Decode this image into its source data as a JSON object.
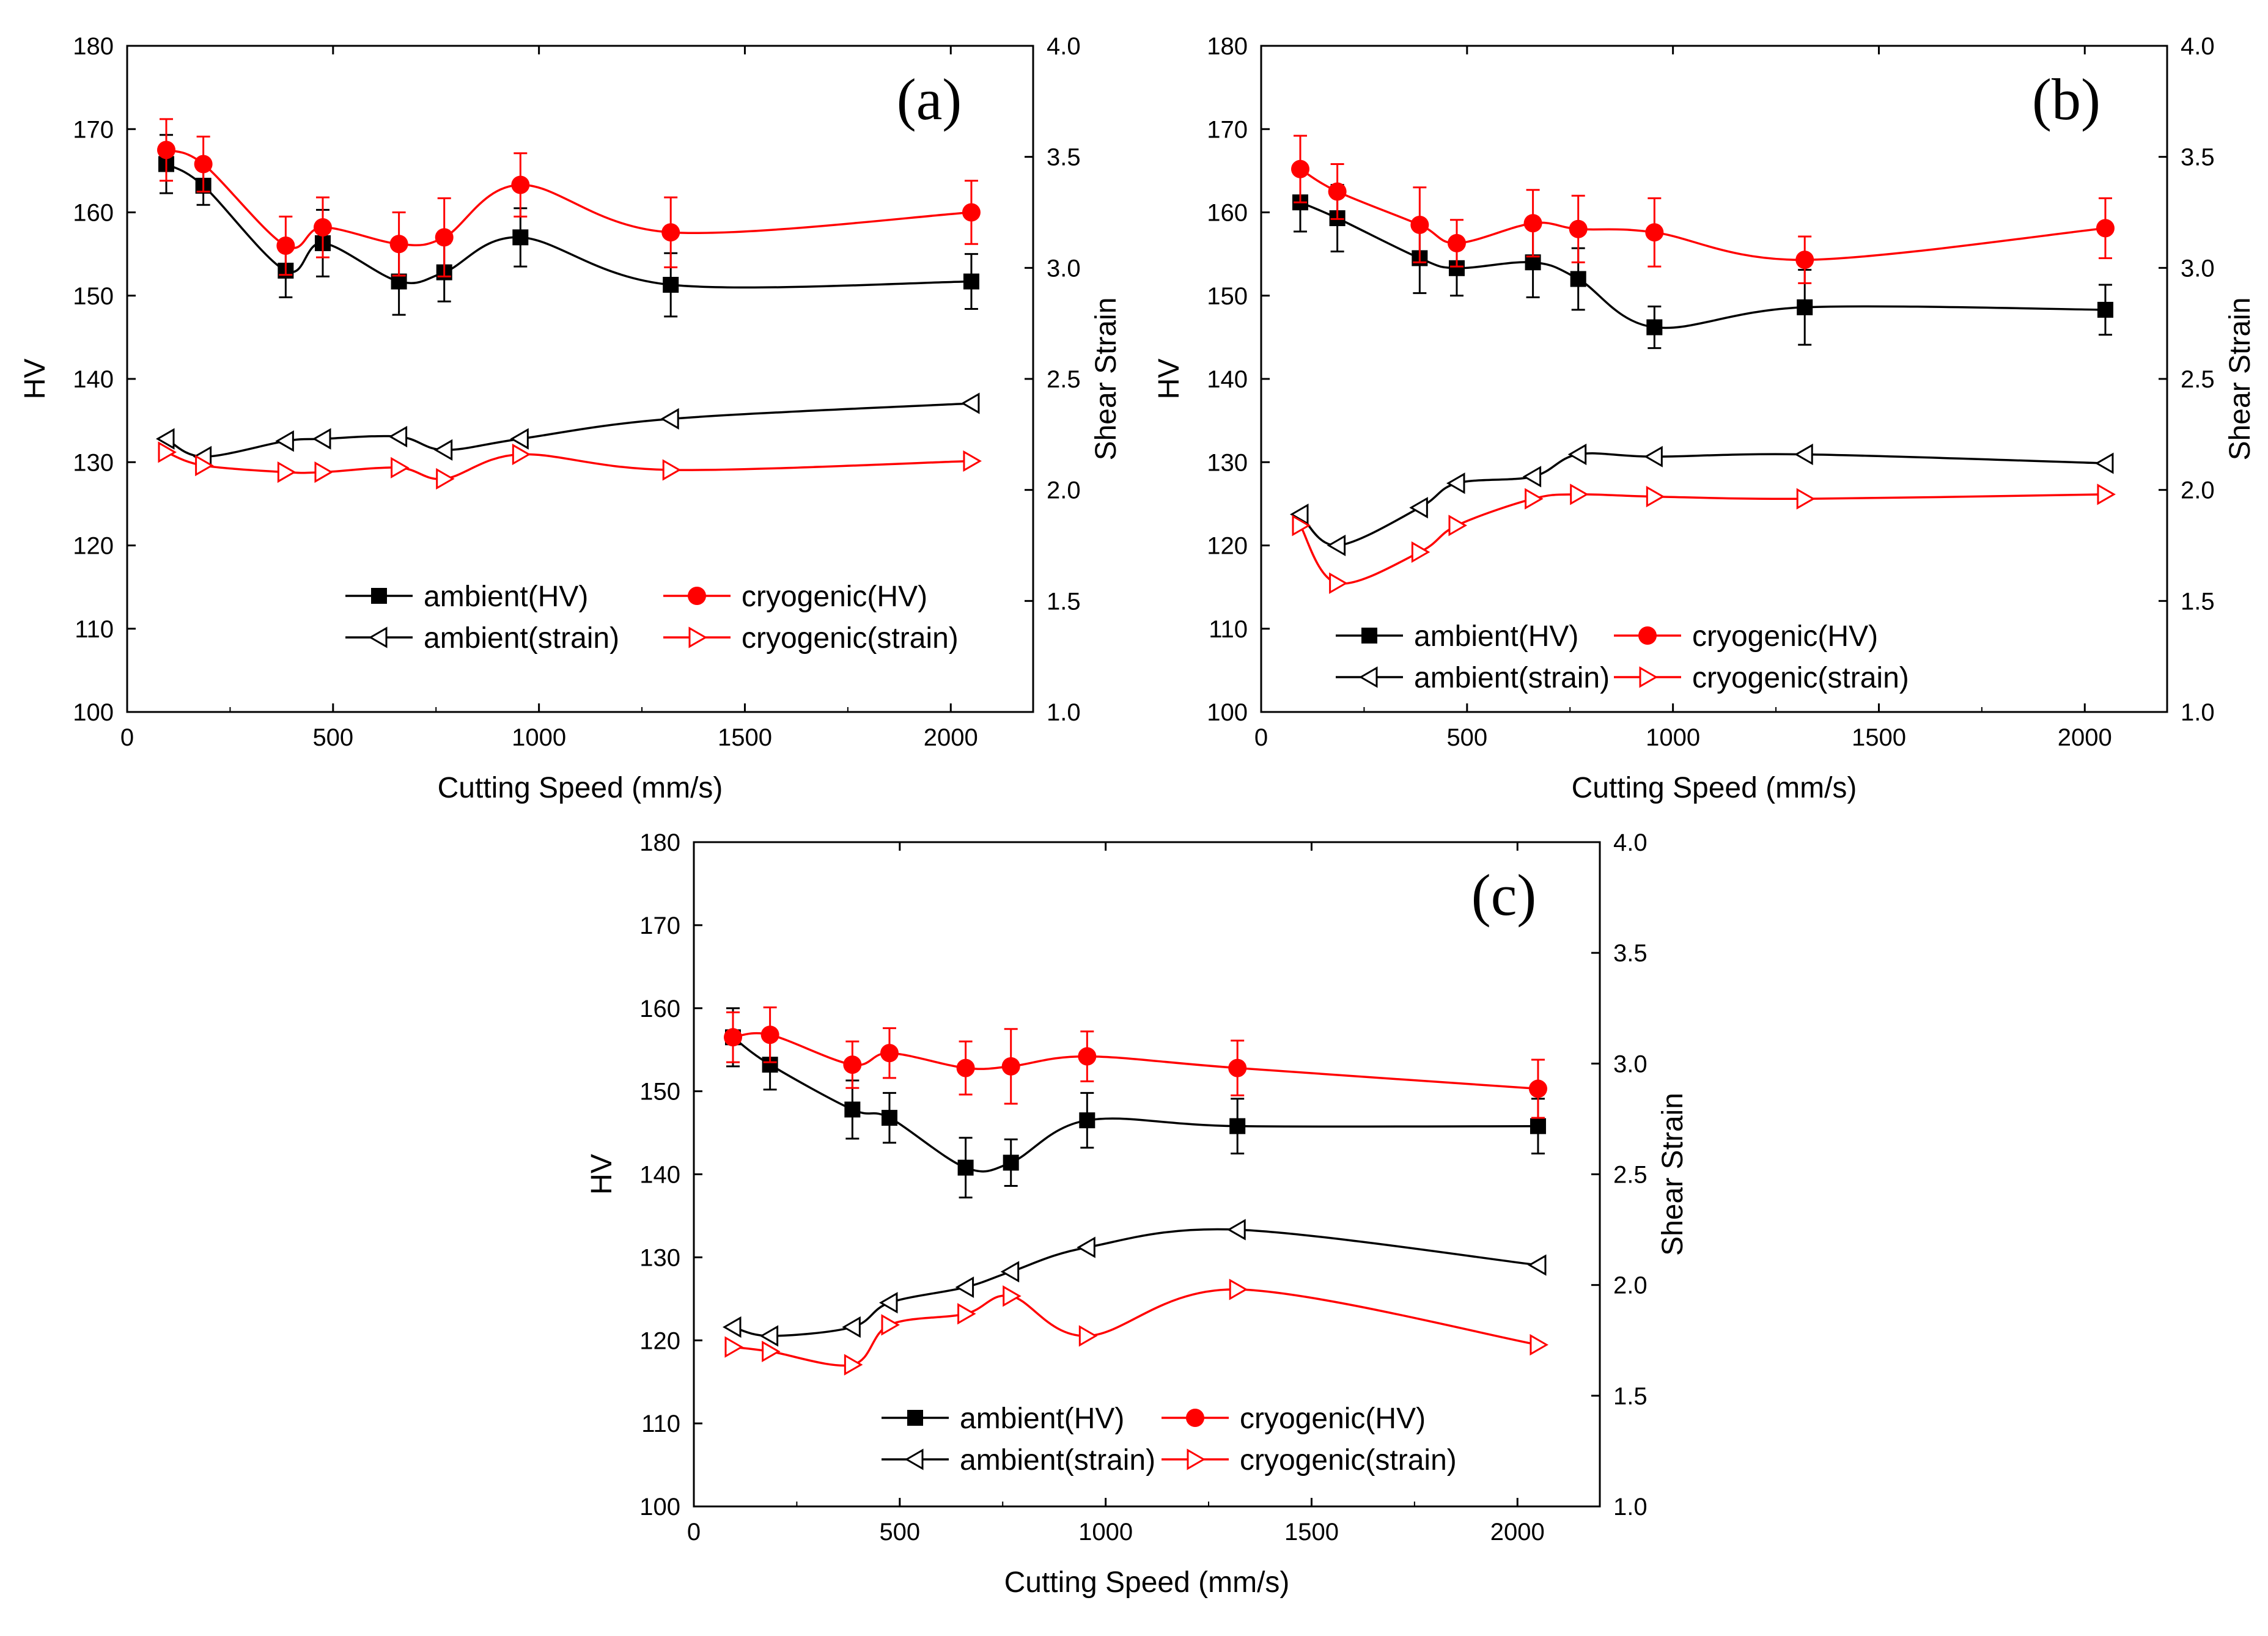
{
  "figure": {
    "description_free": true
  },
  "chart_data": [
    {
      "type": "line",
      "panel": "(a)",
      "xlabel": "Cutting Speed (mm/s)",
      "ylabel": "HV",
      "y2label": "Shear Strain",
      "xlim": [
        0,
        2200
      ],
      "ylim": [
        100,
        180
      ],
      "y2lim": [
        1.0,
        4.0
      ],
      "xticks": [
        "0",
        "500",
        "1000",
        "1500",
        "2000"
      ],
      "yticks": [
        "100",
        "110",
        "120",
        "130",
        "140",
        "150",
        "160",
        "170",
        "180"
      ],
      "y2ticks": [
        "1.0",
        "1.5",
        "2.0",
        "2.5",
        "3.0",
        "3.5",
        "4.0"
      ],
      "x": [
        95,
        185,
        385,
        475,
        660,
        770,
        955,
        1320,
        2050
      ],
      "series": [
        {
          "name": "ambient(HV)",
          "axis": "left",
          "color": "#000000",
          "marker": "square",
          "values": [
            165.8,
            163.2,
            153.0,
            156.3,
            151.7,
            152.8,
            157.0,
            151.3,
            151.7
          ],
          "errors": [
            3.5,
            2.3,
            3.2,
            4.0,
            4.0,
            3.5,
            3.5,
            3.8,
            3.3
          ]
        },
        {
          "name": "cryogenic(HV)",
          "axis": "left",
          "color": "#ff0000",
          "marker": "circle",
          "values": [
            167.5,
            165.8,
            156.0,
            158.2,
            156.2,
            157.0,
            163.3,
            157.6,
            160.0
          ],
          "errors": [
            3.7,
            3.3,
            3.5,
            3.6,
            3.8,
            4.7,
            3.8,
            4.2,
            3.8
          ]
        },
        {
          "name": "ambient(strain)",
          "axis": "right",
          "color": "#000000",
          "marker": "triangle-left",
          "values": [
            2.23,
            2.15,
            2.22,
            2.23,
            2.24,
            2.18,
            2.23,
            2.32,
            2.39
          ]
        },
        {
          "name": "cryogenic(strain)",
          "axis": "right",
          "color": "#ff0000",
          "marker": "triangle-right",
          "values": [
            2.17,
            2.11,
            2.08,
            2.08,
            2.1,
            2.05,
            2.16,
            2.09,
            2.13
          ]
        }
      ],
      "legend": [
        "ambient(HV)",
        "cryogenic(HV)",
        "ambient(strain)",
        "cryogenic(strain)"
      ]
    },
    {
      "type": "line",
      "panel": "(b)",
      "xlabel": "Cutting Speed (mm/s)",
      "ylabel": "HV",
      "y2label": "Shear Strain",
      "xlim": [
        0,
        2200
      ],
      "ylim": [
        100,
        180
      ],
      "y2lim": [
        1.0,
        4.0
      ],
      "xticks": [
        "0",
        "500",
        "1000",
        "1500",
        "2000"
      ],
      "yticks": [
        "100",
        "110",
        "120",
        "130",
        "140",
        "150",
        "160",
        "170",
        "180"
      ],
      "y2ticks": [
        "1.0",
        "1.5",
        "2.0",
        "2.5",
        "3.0",
        "3.5",
        "4.0"
      ],
      "x": [
        95,
        185,
        385,
        475,
        660,
        770,
        955,
        1320,
        2050
      ],
      "series": [
        {
          "name": "ambient(HV)",
          "axis": "left",
          "color": "#000000",
          "marker": "square",
          "values": [
            161.2,
            159.3,
            154.5,
            153.3,
            154.0,
            152.0,
            146.2,
            148.6,
            148.3
          ],
          "errors": [
            3.5,
            4.0,
            4.2,
            3.3,
            4.2,
            3.7,
            2.5,
            4.5,
            3.0
          ]
        },
        {
          "name": "cryogenic(HV)",
          "axis": "left",
          "color": "#ff0000",
          "marker": "circle",
          "values": [
            165.2,
            162.5,
            158.5,
            156.3,
            158.7,
            158.0,
            157.6,
            154.3,
            158.1
          ],
          "errors": [
            4.0,
            3.3,
            4.5,
            2.8,
            4.0,
            4.0,
            4.1,
            2.8,
            3.6
          ]
        },
        {
          "name": "ambient(strain)",
          "axis": "right",
          "color": "#000000",
          "marker": "triangle-left",
          "values": [
            1.89,
            1.75,
            1.92,
            2.03,
            2.06,
            2.16,
            2.15,
            2.16,
            2.12
          ]
        },
        {
          "name": "cryogenic(strain)",
          "axis": "right",
          "color": "#ff0000",
          "marker": "triangle-right",
          "values": [
            1.84,
            1.58,
            1.72,
            1.84,
            1.96,
            1.98,
            1.97,
            1.96,
            1.98
          ]
        }
      ],
      "legend": [
        "ambient(HV)",
        "cryogenic(HV)",
        "ambient(strain)",
        "cryogenic(strain)"
      ]
    },
    {
      "type": "line",
      "panel": "(c)",
      "xlabel": "Cutting Speed (mm/s)",
      "ylabel": "HV",
      "y2label": "Shear Strain",
      "xlim": [
        0,
        2200
      ],
      "ylim": [
        100,
        180
      ],
      "y2lim": [
        1.0,
        4.0
      ],
      "xticks": [
        "0",
        "500",
        "1000",
        "1500",
        "2000"
      ],
      "yticks": [
        "100",
        "110",
        "120",
        "130",
        "140",
        "150",
        "160",
        "170",
        "180"
      ],
      "y2ticks": [
        "1.0",
        "1.5",
        "2.0",
        "2.5",
        "3.0",
        "3.5",
        "4.0"
      ],
      "x": [
        95,
        185,
        385,
        475,
        660,
        770,
        955,
        1320,
        2050
      ],
      "series": [
        {
          "name": "ambient(HV)",
          "axis": "left",
          "color": "#000000",
          "marker": "square",
          "values": [
            156.5,
            153.2,
            147.8,
            146.8,
            140.8,
            141.4,
            146.5,
            145.8,
            145.8
          ],
          "errors": [
            3.5,
            3.0,
            3.5,
            3.0,
            3.6,
            2.8,
            3.3,
            3.3,
            3.3
          ]
        },
        {
          "name": "cryogenic(HV)",
          "axis": "left",
          "color": "#ff0000",
          "marker": "circle",
          "values": [
            156.5,
            156.8,
            153.2,
            154.6,
            152.8,
            153.0,
            154.2,
            152.8,
            150.3
          ],
          "errors": [
            3.0,
            3.3,
            2.8,
            3.0,
            3.2,
            4.5,
            3.0,
            3.3,
            3.5
          ]
        },
        {
          "name": "ambient(strain)",
          "axis": "right",
          "color": "#000000",
          "marker": "triangle-left",
          "values": [
            1.81,
            1.77,
            1.81,
            1.92,
            1.99,
            2.06,
            2.17,
            2.25,
            2.09
          ]
        },
        {
          "name": "cryogenic(strain)",
          "axis": "right",
          "color": "#ff0000",
          "marker": "triangle-right",
          "values": [
            1.72,
            1.7,
            1.64,
            1.82,
            1.87,
            1.95,
            1.77,
            1.98,
            1.73
          ]
        }
      ],
      "legend": [
        "ambient(HV)",
        "cryogenic(HV)",
        "ambient(strain)",
        "cryogenic(strain)"
      ]
    }
  ]
}
